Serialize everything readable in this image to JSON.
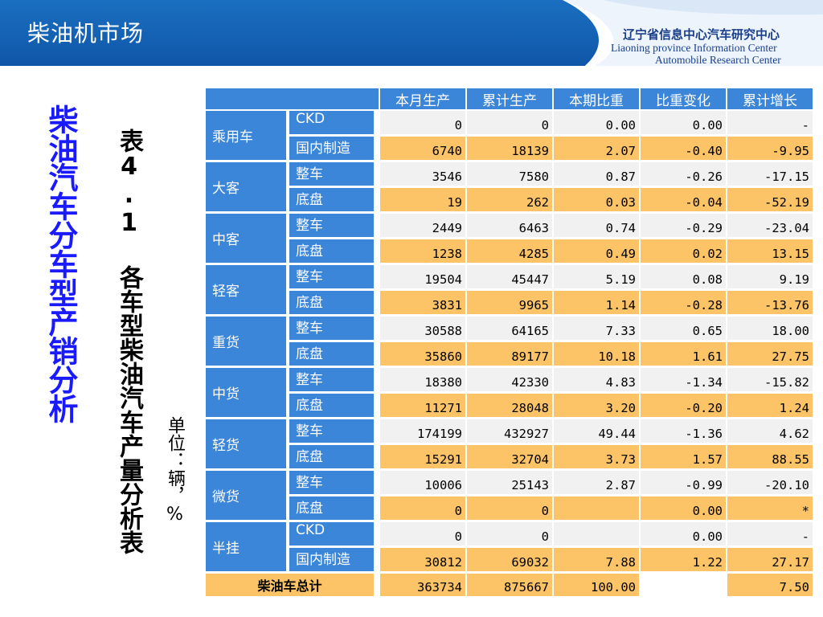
{
  "header": {
    "title": "柴油机市场",
    "org_cn_part1": "辽宁省信息中心",
    "org_cn_part2": "汽车研究中心",
    "org_en_line1": "Liaoning province Information Center",
    "org_en_line2": "Automobile Research Center"
  },
  "side_title": "柴油汽车分车型产销分析",
  "table_title": "表4.1 各车型柴油汽车产量分析表",
  "unit": "单位：辆，%",
  "columns": [
    "本月生产",
    "累计生产",
    "本期比重",
    "比重变化",
    "累计增长"
  ],
  "categories": [
    {
      "name": "乘用车",
      "rows": [
        {
          "sub": "CKD",
          "values": [
            "0",
            "0",
            "0.00",
            "0.00",
            "-"
          ]
        },
        {
          "sub": "国内制造",
          "values": [
            "6740",
            "18139",
            "2.07",
            "-0.40",
            "-9.95"
          ]
        }
      ]
    },
    {
      "name": "大客",
      "rows": [
        {
          "sub": "整车",
          "values": [
            "3546",
            "7580",
            "0.87",
            "-0.26",
            "-17.15"
          ]
        },
        {
          "sub": "底盘",
          "values": [
            "19",
            "262",
            "0.03",
            "-0.04",
            "-52.19"
          ]
        }
      ]
    },
    {
      "name": "中客",
      "rows": [
        {
          "sub": "整车",
          "values": [
            "2449",
            "6463",
            "0.74",
            "-0.29",
            "-23.04"
          ]
        },
        {
          "sub": "底盘",
          "values": [
            "1238",
            "4285",
            "0.49",
            "0.02",
            "13.15"
          ]
        }
      ]
    },
    {
      "name": "轻客",
      "rows": [
        {
          "sub": "整车",
          "values": [
            "19504",
            "45447",
            "5.19",
            "0.08",
            "9.19"
          ]
        },
        {
          "sub": "底盘",
          "values": [
            "3831",
            "9965",
            "1.14",
            "-0.28",
            "-13.76"
          ]
        }
      ]
    },
    {
      "name": "重货",
      "rows": [
        {
          "sub": "整车",
          "values": [
            "30588",
            "64165",
            "7.33",
            "0.65",
            "18.00"
          ]
        },
        {
          "sub": "底盘",
          "values": [
            "35860",
            "89177",
            "10.18",
            "1.61",
            "27.75"
          ]
        }
      ]
    },
    {
      "name": "中货",
      "rows": [
        {
          "sub": "整车",
          "values": [
            "18380",
            "42330",
            "4.83",
            "-1.34",
            "-15.82"
          ]
        },
        {
          "sub": "底盘",
          "values": [
            "11271",
            "28048",
            "3.20",
            "-0.20",
            "1.24"
          ]
        }
      ]
    },
    {
      "name": "轻货",
      "rows": [
        {
          "sub": "整车",
          "values": [
            "174199",
            "432927",
            "49.44",
            "-1.36",
            "4.62"
          ]
        },
        {
          "sub": "底盘",
          "values": [
            "15291",
            "32704",
            "3.73",
            "1.57",
            "88.55"
          ]
        }
      ]
    },
    {
      "name": "微货",
      "rows": [
        {
          "sub": "整车",
          "values": [
            "10006",
            "25143",
            "2.87",
            "-0.99",
            "-20.10"
          ]
        },
        {
          "sub": "底盘",
          "values": [
            "0",
            "0",
            "",
            "0.00",
            "*"
          ]
        }
      ]
    },
    {
      "name": "半挂",
      "rows": [
        {
          "sub": "CKD",
          "values": [
            "0",
            "0",
            "",
            "0.00",
            "-"
          ]
        },
        {
          "sub": "国内制造",
          "values": [
            "30812",
            "69032",
            "7.88",
            "1.22",
            "27.17"
          ]
        }
      ]
    }
  ],
  "total": {
    "label": "柴油车总计",
    "values": [
      "363734",
      "875667",
      "100.00",
      "",
      "7.50"
    ]
  },
  "colors": {
    "header_blue": "#3b86d8",
    "orange": "#fcc466",
    "grey": "#f1f1f1",
    "title_blue": "#1a1aff"
  }
}
